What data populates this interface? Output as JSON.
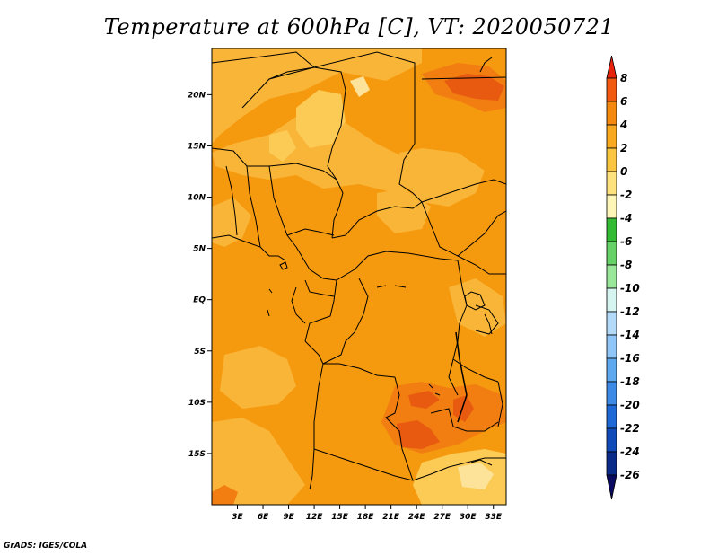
{
  "title": "Temperature at 600hPa [C], VT: 2020050721",
  "credit": "GrADS: IGES/COLA",
  "map": {
    "lon_range": [
      0,
      34.5
    ],
    "lat_range": [
      -20,
      24.5
    ],
    "lon_ticks": [
      {
        "v": 3,
        "label": "3E"
      },
      {
        "v": 6,
        "label": "6E"
      },
      {
        "v": 9,
        "label": "9E"
      },
      {
        "v": 12,
        "label": "12E"
      },
      {
        "v": 15,
        "label": "15E"
      },
      {
        "v": 18,
        "label": "18E"
      },
      {
        "v": 21,
        "label": "21E"
      },
      {
        "v": 24,
        "label": "24E"
      },
      {
        "v": 27,
        "label": "27E"
      },
      {
        "v": 30,
        "label": "30E"
      },
      {
        "v": 33,
        "label": "33E"
      }
    ],
    "lat_ticks": [
      {
        "v": 20,
        "label": "20N"
      },
      {
        "v": 15,
        "label": "15N"
      },
      {
        "v": 10,
        "label": "10N"
      },
      {
        "v": 5,
        "label": "5N"
      },
      {
        "v": 0,
        "label": "EQ"
      },
      {
        "v": -5,
        "label": "5S"
      },
      {
        "v": -10,
        "label": "10S"
      },
      {
        "v": -15,
        "label": "15S"
      }
    ]
  },
  "colorbar": {
    "labels": [
      "8",
      "6",
      "4",
      "2",
      "0",
      "-2",
      "-4",
      "-6",
      "-8",
      "-10",
      "-12",
      "-14",
      "-16",
      "-18",
      "-20",
      "-22",
      "-24",
      "-26"
    ],
    "colors": [
      "#e8220d",
      "#f25a12",
      "#f5880f",
      "#f9a91f",
      "#fbc441",
      "#fde27e",
      "#fdf6b6",
      "#33bb33",
      "#66d166",
      "#99e799",
      "#d6f4f0",
      "#b3dbf9",
      "#8fc6f7",
      "#5ea8ef",
      "#3c8ae6",
      "#1f69d7",
      "#104cb9",
      "#0a2a8a",
      "#0a0a60"
    ]
  },
  "colors": {
    "base": "#f5990f",
    "light": "#f9b537",
    "lighter": "#fccb55",
    "warm": "#f27e12",
    "hot": "#e85a10",
    "cool": "#fde39a"
  }
}
